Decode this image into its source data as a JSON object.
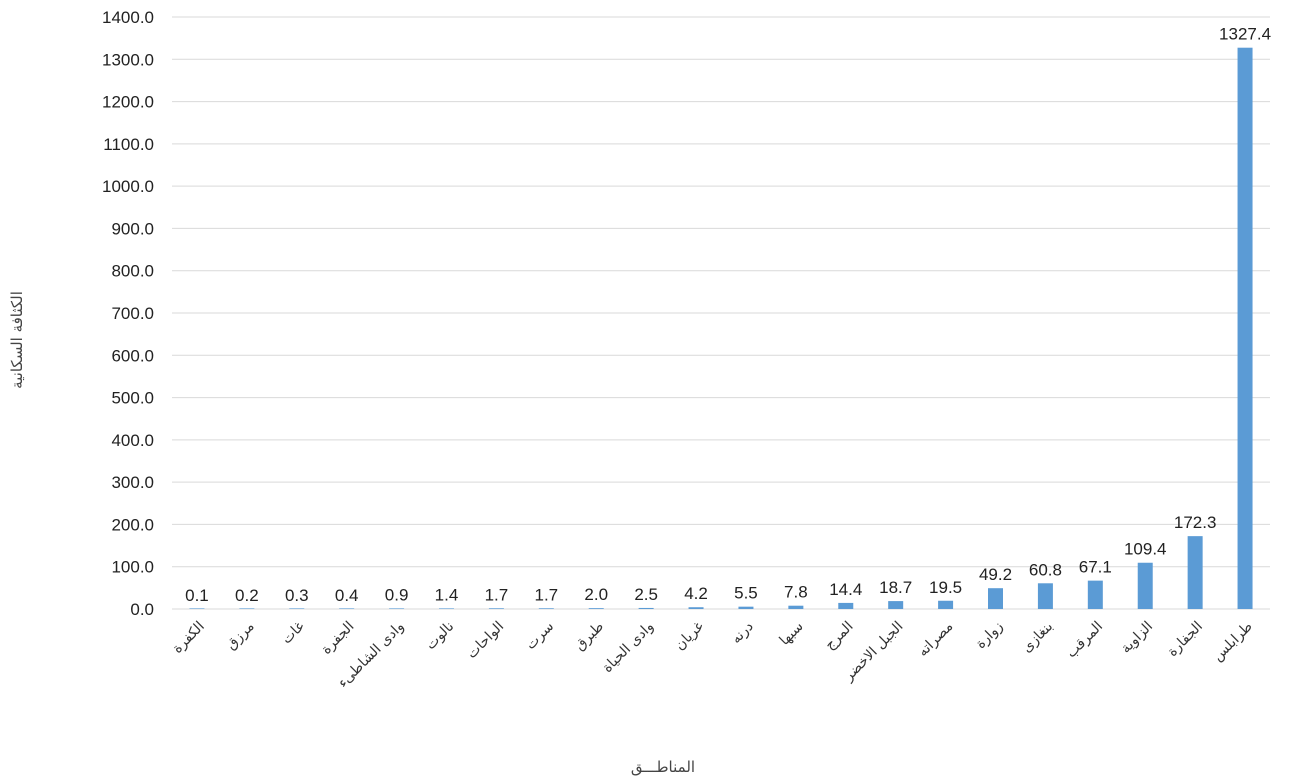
{
  "chart_data": {
    "type": "bar",
    "title": "",
    "xlabel": "المناطـــق",
    "ylabel": "الكثافة السكانية",
    "ylim": [
      0,
      1400
    ],
    "ytick_step": 100,
    "ytick_decimals": 1,
    "grid": true,
    "legend": "none",
    "bar_color": "#5b9bd5",
    "grid_color": "#d9d9d9",
    "categories": [
      "الكفرة",
      "مرزق",
      "غات",
      "الجفرة",
      "وادى الشاطىء",
      "نالوت",
      "الواحات",
      "سرت",
      "طبرق",
      "وادى الحياة",
      "غريان",
      "درنه",
      "سبها",
      "المرج",
      "الجبل الاخضر",
      "مصراته",
      "زوارة",
      "بنغازى",
      "المرقب",
      "الزاوية",
      "الجفارة",
      "طرابلس"
    ],
    "values": [
      0.1,
      0.2,
      0.3,
      0.4,
      0.9,
      1.4,
      1.7,
      1.7,
      2.0,
      2.5,
      4.2,
      5.5,
      7.8,
      14.4,
      18.7,
      19.5,
      49.2,
      60.8,
      67.1,
      109.4,
      172.3,
      1327.4
    ]
  }
}
